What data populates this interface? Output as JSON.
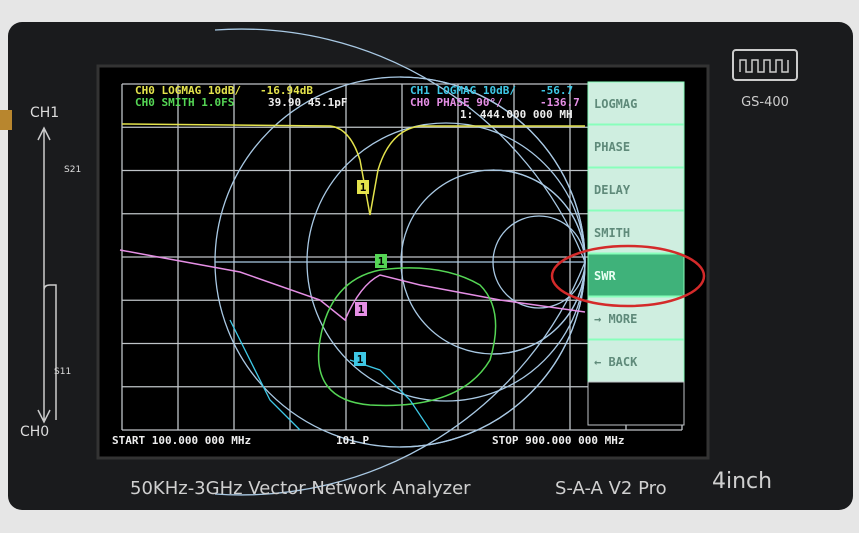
{
  "device": {
    "side_labels": {
      "ch1": "CH1",
      "s21": "S21",
      "s11": "S11",
      "ch0": "CH0"
    },
    "model_badge": "GS-400",
    "footer_text": "50KHz-3GHz Vector Network Analyzer",
    "brand": "S-A-A V2 Pro",
    "size": "4inch"
  },
  "screen": {
    "header": [
      {
        "label": "CH0 LOGMAG 10dB/",
        "value": "-16.94dB"
      },
      {
        "label": "CH0 SMITH 1.0FS",
        "value": "39.90 45.1pF"
      },
      {
        "label": "CH1 LOGMAG 10dB/",
        "value": "-56.7"
      },
      {
        "label": "CH0 PHASE 90°/",
        "value": "-136.7"
      }
    ],
    "marker_readout": "1: 444.000 000 MH",
    "menu": [
      "LOGMAG",
      "PHASE",
      "DELAY",
      "SMITH",
      "SWR",
      "→ MORE",
      "← BACK"
    ],
    "selected_menu": 4,
    "marker": "1",
    "footer": {
      "start": "START 100.000 000 MHz",
      "points": "101 P",
      "stop": "STOP 900.000 000 MHz"
    }
  }
}
